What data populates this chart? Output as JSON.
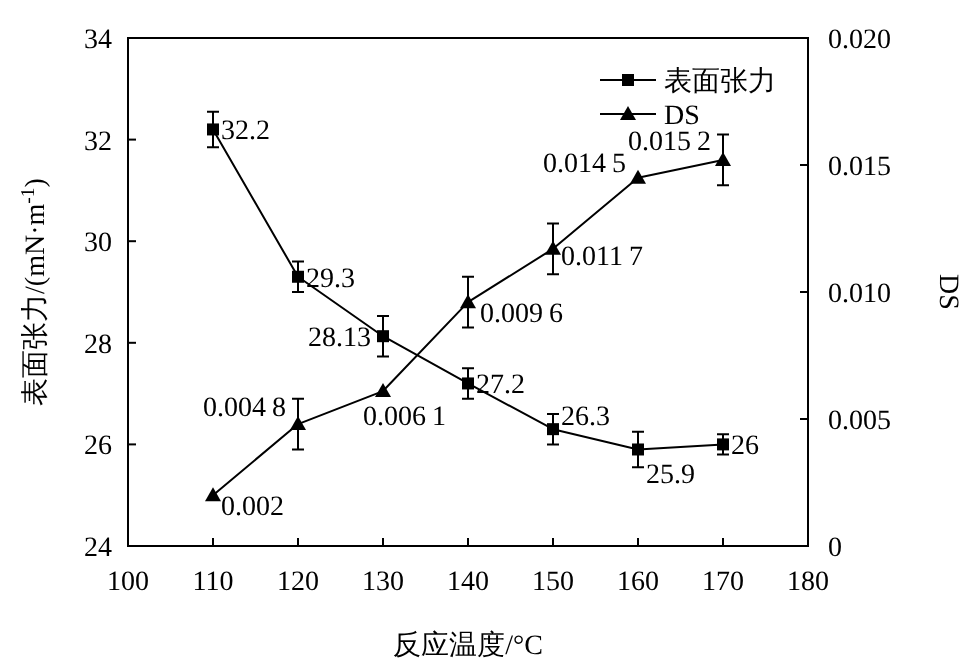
{
  "chart_data": {
    "type": "line",
    "xlabel": "反应温度/°C",
    "ylabel": "表面张力/(mN·m$^{-1}$)",
    "y2label": "DS",
    "x": [
      110,
      120,
      130,
      140,
      150,
      160,
      170
    ],
    "series": [
      {
        "name": "表面张力",
        "color": "#000000",
        "marker": "square",
        "values": [
          32.2,
          29.3,
          28.13,
          27.2,
          26.3,
          25.9,
          26
        ],
        "errors": [
          0.35,
          0.3,
          0.4,
          0.3,
          0.3,
          0.35,
          0.2
        ],
        "value_labels": [
          "32.2",
          "29.3",
          "28.13",
          "27.2",
          "26.3",
          "25.9",
          "26"
        ]
      },
      {
        "name": "DS",
        "color": "#000000",
        "marker": "triangle",
        "axis": "y2",
        "values": [
          0.002,
          0.0048,
          0.0061,
          0.0096,
          0.0117,
          0.0145,
          0.0152
        ],
        "errors": [
          null,
          0.001,
          null,
          0.001,
          0.001,
          null,
          0.001
        ],
        "value_labels": [
          "0.002",
          "0.0048",
          "0.0061",
          "0.0096",
          "0.0117",
          "0.0145",
          "0.0152"
        ]
      }
    ],
    "xlim": [
      100,
      180
    ],
    "xticks": [
      100,
      110,
      120,
      130,
      140,
      150,
      160,
      170,
      180
    ],
    "ylim": [
      24,
      34
    ],
    "yticks": [
      24,
      26,
      28,
      30,
      32,
      34
    ],
    "y2lim": [
      0,
      0.02
    ],
    "y2ticks": [
      0,
      {
        "value": 0.005,
        "label": "0.005"
      },
      {
        "value": 0.01,
        "label": "0.010"
      },
      {
        "value": 0.015,
        "label": "0.015"
      },
      {
        "value": 0.02,
        "label": "0.020"
      }
    ],
    "legend": "top right",
    "line_style": "solid",
    "grid": false
  }
}
